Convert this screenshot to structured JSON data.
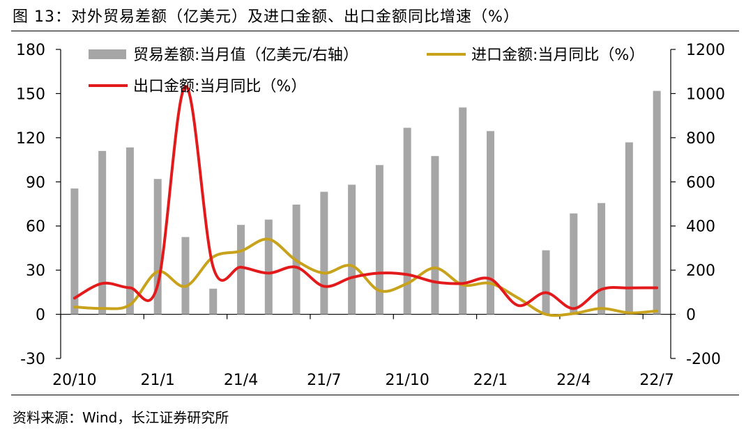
{
  "title": "图 13：对外贸易差额（亿美元）及进口金额、出口金额同比增速（%）",
  "source": "资料来源：Wind，长江证券研究所",
  "colors": {
    "bar": "#a6a6a6",
    "import_line": "#c9a21b",
    "export_line": "#e31a1c",
    "axis": "#000000"
  },
  "chart_data": {
    "type": "bar+line",
    "categories": [
      "20/10",
      "20/11",
      "20/12",
      "21/1",
      "21/2",
      "21/3",
      "21/4",
      "21/5",
      "21/6",
      "21/7",
      "21/8",
      "21/9",
      "21/10",
      "21/11",
      "21/12",
      "22/1",
      "22/2",
      "22/3",
      "22/4",
      "22/5",
      "22/6",
      "22/7"
    ],
    "x_tick_labels": [
      "20/10",
      "21/1",
      "21/4",
      "21/7",
      "21/10",
      "22/1",
      "22/4",
      "22/7"
    ],
    "x_tick_indices": [
      0,
      3,
      6,
      9,
      12,
      15,
      18,
      21
    ],
    "left_axis": {
      "ylim": [
        -30,
        180
      ],
      "ticks": [
        "-30",
        "0",
        "30",
        "60",
        "90",
        "120",
        "150",
        "180"
      ]
    },
    "right_axis": {
      "ylim": [
        -200,
        1200
      ],
      "ticks": [
        "-200",
        "0",
        "200",
        "400",
        "600",
        "800",
        "1000",
        "1200"
      ]
    },
    "series": [
      {
        "name": "贸易差额:当月值（亿美元/右轴）",
        "kind": "bar",
        "axis": "right",
        "values": [
          570,
          740,
          756,
          613,
          350,
          116,
          405,
          429,
          497,
          555,
          587,
          676,
          845,
          717,
          937,
          830,
          0,
          290,
          457,
          504,
          779,
          1012
        ]
      },
      {
        "name": "进口金额:当月同比（%）",
        "kind": "line",
        "axis": "left",
        "values": [
          5,
          4,
          6.5,
          29,
          19,
          39,
          43,
          51,
          36.5,
          28,
          33,
          16,
          21,
          31.5,
          20,
          21,
          11,
          0,
          0.5,
          4,
          1,
          2.3
        ]
      },
      {
        "name": "出口金额:当月同比（%）",
        "kind": "line",
        "axis": "left",
        "values": [
          11,
          21,
          18,
          20,
          154.9,
          32,
          32,
          28,
          32,
          19,
          25,
          28,
          27,
          22,
          21,
          24,
          6,
          14.7,
          3.9,
          16.9,
          17.9,
          18
        ]
      }
    ]
  }
}
